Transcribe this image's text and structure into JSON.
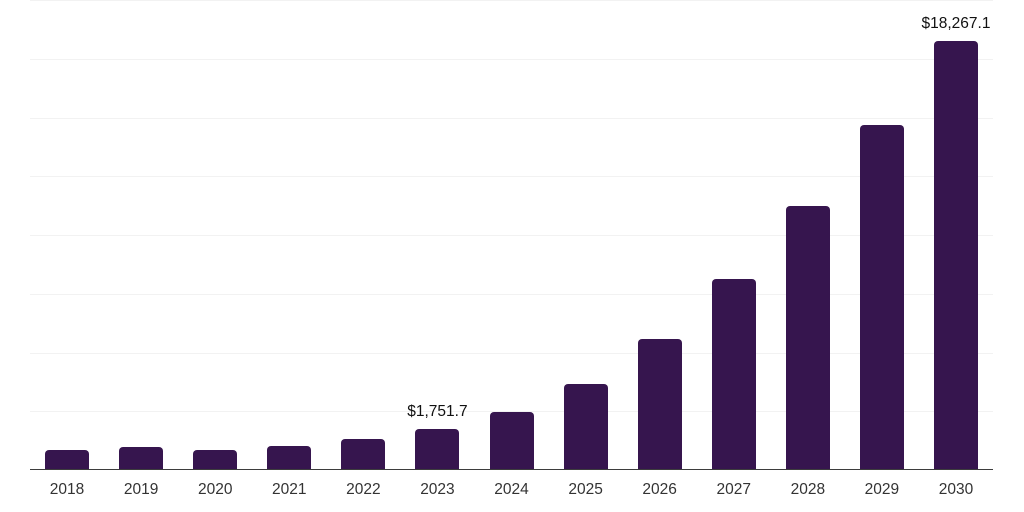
{
  "chart_data": {
    "type": "bar",
    "title": "",
    "xlabel": "",
    "ylabel": "",
    "categories": [
      "2018",
      "2019",
      "2020",
      "2021",
      "2022",
      "2023",
      "2024",
      "2025",
      "2026",
      "2027",
      "2028",
      "2029",
      "2030"
    ],
    "values": [
      850,
      980,
      850,
      1020,
      1320,
      1751.7,
      2480,
      3670,
      5590,
      8110,
      11220,
      14680,
      18267.1
    ],
    "data_labels": {
      "2023": "$1,751.7",
      "2030": "$18,267.1"
    },
    "ylim": [
      0,
      20000
    ],
    "gridline_count": 8,
    "grid": true,
    "legend": false,
    "y_axis_tick_labels_visible": false,
    "colors": {
      "bar": "#36154E",
      "gridline": "#F2F2F2",
      "axis": "#3D3D3D",
      "tick_text": "#333333",
      "data_label_text": "#111111",
      "background": "#FFFFFF"
    }
  }
}
